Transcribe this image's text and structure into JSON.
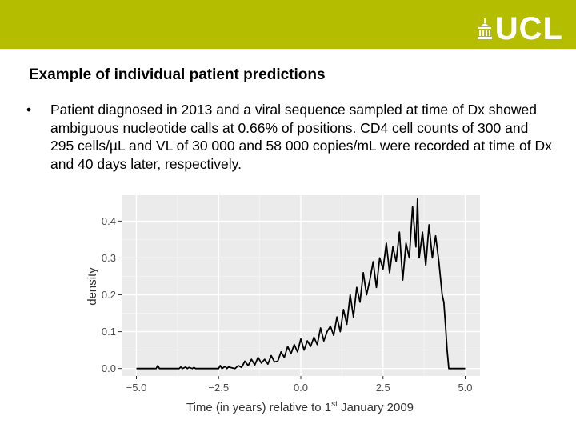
{
  "header": {
    "logo_text": "UCL",
    "bar_color": "#b5bd00"
  },
  "slide": {
    "title": "Example of individual patient predictions",
    "bullet": "Patient diagnosed in 2013 and a viral sequence sampled at time of Dx showed ambiguous nucleotide calls at 0.66% of positions. CD4 cell counts of 300 and 295 cells/µL and VL of 30 000 and 58 000 copies/mL were recorded at time of Dx and 40 days later, respectively."
  },
  "chart_data": {
    "type": "line",
    "xlabel_main": "Time (in years) relative to 1",
    "xlabel_sup": "st",
    "xlabel_tail": " January 2009",
    "ylabel": "density",
    "xlim": [
      -5.0,
      5.0
    ],
    "ylim": [
      0.0,
      0.45
    ],
    "x_ticks": [
      "−5.0",
      "−2.5",
      "0.0",
      "2.5",
      "5.0"
    ],
    "x_tick_values": [
      -5.0,
      -2.5,
      0.0,
      2.5,
      5.0
    ],
    "y_ticks": [
      "0.0",
      "0.1",
      "0.2",
      "0.3",
      "0.4"
    ],
    "y_tick_values": [
      0.0,
      0.1,
      0.2,
      0.3,
      0.4
    ],
    "grid": true,
    "background": "#ebebeb",
    "series": [
      {
        "color": "#000000",
        "x": [
          -5.0,
          -4.4,
          -4.35,
          -4.3,
          -4.0,
          -3.7,
          -3.65,
          -3.6,
          -3.5,
          -3.45,
          -3.4,
          -3.3,
          -3.25,
          -3.2,
          -3.1,
          -3.0,
          -2.8,
          -2.6,
          -2.5,
          -2.45,
          -2.4,
          -2.3,
          -2.25,
          -2.2,
          -2.0,
          -1.9,
          -1.8,
          -1.7,
          -1.6,
          -1.5,
          -1.4,
          -1.3,
          -1.2,
          -1.1,
          -1.0,
          -0.9,
          -0.8,
          -0.7,
          -0.6,
          -0.5,
          -0.4,
          -0.3,
          -0.2,
          -0.1,
          0.0,
          0.1,
          0.2,
          0.3,
          0.4,
          0.5,
          0.6,
          0.7,
          0.8,
          0.9,
          1.0,
          1.1,
          1.2,
          1.3,
          1.4,
          1.5,
          1.6,
          1.7,
          1.8,
          1.9,
          2.0,
          2.1,
          2.2,
          2.3,
          2.4,
          2.5,
          2.6,
          2.7,
          2.8,
          2.9,
          3.0,
          3.1,
          3.2,
          3.3,
          3.4,
          3.5,
          3.55,
          3.6,
          3.7,
          3.8,
          3.9,
          4.0,
          4.1,
          4.2,
          4.3,
          4.35,
          4.4,
          4.45,
          4.5,
          4.6,
          5.0
        ],
        "y": [
          0.0,
          0.0,
          0.008,
          0.0,
          0.0,
          0.0,
          0.004,
          0.0,
          0.004,
          0.0,
          0.003,
          0.0,
          0.003,
          0.0,
          0.0,
          0.0,
          0.0,
          0.0,
          0.0,
          0.008,
          0.0,
          0.006,
          0.0,
          0.004,
          0.0,
          0.008,
          0.003,
          0.02,
          0.008,
          0.025,
          0.01,
          0.03,
          0.015,
          0.025,
          0.012,
          0.035,
          0.018,
          0.02,
          0.045,
          0.03,
          0.06,
          0.04,
          0.065,
          0.045,
          0.08,
          0.05,
          0.075,
          0.06,
          0.085,
          0.065,
          0.11,
          0.075,
          0.1,
          0.115,
          0.09,
          0.14,
          0.1,
          0.16,
          0.12,
          0.2,
          0.14,
          0.22,
          0.18,
          0.26,
          0.2,
          0.24,
          0.29,
          0.22,
          0.3,
          0.27,
          0.34,
          0.26,
          0.33,
          0.29,
          0.37,
          0.24,
          0.34,
          0.3,
          0.44,
          0.33,
          0.46,
          0.3,
          0.37,
          0.28,
          0.39,
          0.3,
          0.36,
          0.29,
          0.2,
          0.18,
          0.12,
          0.05,
          0.0,
          0.0,
          0.0
        ]
      }
    ]
  }
}
